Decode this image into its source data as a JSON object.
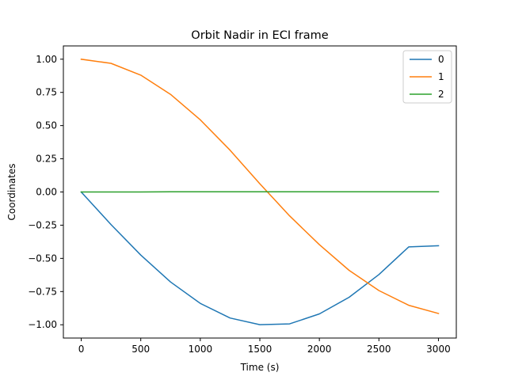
{
  "chart_data": {
    "type": "line",
    "title": "Orbit Nadir in ECI frame",
    "xlabel": "Time (s)",
    "ylabel": "Coordinates",
    "xlim": [
      -150,
      3150
    ],
    "ylim": [
      -1.1,
      1.1
    ],
    "xticks": [
      0,
      500,
      1000,
      1500,
      2000,
      2500,
      3000
    ],
    "xtick_labels": [
      "0",
      "500",
      "1000",
      "1500",
      "2000",
      "2500",
      "3000"
    ],
    "yticks": [
      -1.0,
      -0.75,
      -0.5,
      -0.25,
      0.0,
      0.25,
      0.5,
      0.75,
      1.0
    ],
    "ytick_labels": [
      "−1.00",
      "−0.75",
      "−0.50",
      "−0.25",
      "0.00",
      "0.25",
      "0.50",
      "0.75",
      "1.00"
    ],
    "grid": false,
    "legend_position": "top-right",
    "x": [
      0,
      250,
      500,
      750,
      1000,
      1250,
      1500,
      1750,
      2000,
      2250,
      2500,
      2750,
      3000
    ],
    "series": [
      {
        "name": "0",
        "color": "#1f77b4",
        "values": [
          0.0,
          -0.245,
          -0.475,
          -0.678,
          -0.839,
          -0.949,
          -0.999,
          -0.993,
          -0.918,
          -0.793,
          -0.622,
          -0.414,
          -0.405
        ]
      },
      {
        "name": "1",
        "color": "#ff7f0e",
        "values": [
          1.0,
          0.969,
          0.88,
          0.735,
          0.544,
          0.315,
          0.062,
          -0.18,
          -0.397,
          -0.59,
          -0.742,
          -0.853,
          -0.915
        ]
      },
      {
        "name": "2",
        "color": "#2ca02c",
        "values": [
          0.0,
          0.0,
          0.0,
          0.001,
          0.001,
          0.001,
          0.002,
          0.002,
          0.002,
          0.002,
          0.002,
          0.002,
          0.002
        ]
      }
    ]
  }
}
